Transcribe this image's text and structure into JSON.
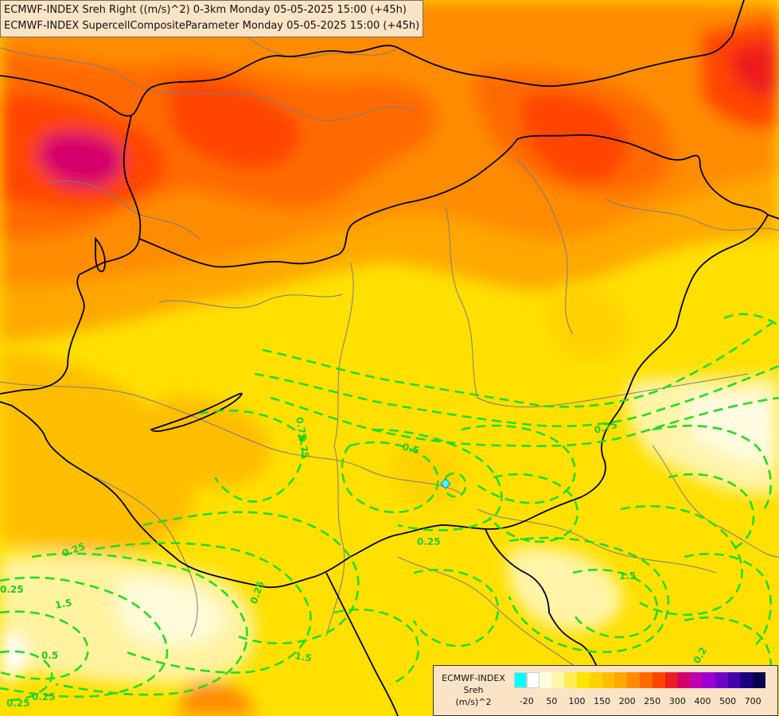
{
  "title": {
    "line1": "ECMWF-INDEX Sreh Right ((m/s)^2) 0-3km Monday 05-05-2025 15:00 (+45h)",
    "line2": "ECMWF-INDEX SupercellCompositeParameter Monday 05-05-2025 15:00 (+45h)"
  },
  "legend": {
    "line1": "ECMWF-INDEX",
    "line2": "Sreh",
    "line3": "(m/s)^2",
    "colors": [
      "#00ffff",
      "#ffffff",
      "#fffde0",
      "#fff7a8",
      "#ffee55",
      "#ffe400",
      "#ffd200",
      "#ffbe00",
      "#ffa800",
      "#ff8c00",
      "#ff6a00",
      "#ff4500",
      "#ee1e1e",
      "#d6006b",
      "#c000b0",
      "#9a00d6",
      "#7200c8",
      "#4400a8",
      "#1a0080",
      "#06004e"
    ],
    "ticks": [
      {
        "label": "-20",
        "slot": 1
      },
      {
        "label": "50",
        "slot": 3
      },
      {
        "label": "100",
        "slot": 5
      },
      {
        "label": "150",
        "slot": 7
      },
      {
        "label": "200",
        "slot": 9
      },
      {
        "label": "250",
        "slot": 11
      },
      {
        "label": "300",
        "slot": 13
      },
      {
        "label": "400",
        "slot": 15
      },
      {
        "label": "500",
        "slot": 17
      },
      {
        "label": "700",
        "slot": 19
      }
    ]
  },
  "contour_labels": [
    "0.75",
    "0.75",
    "0.5",
    "0.75",
    "0.25",
    "0.25",
    "0.25",
    "1.5",
    "0.25",
    "1.5",
    "1.5",
    "0.25",
    "0.5",
    "0.25",
    "0.2"
  ],
  "colors": {
    "contour": "#22dd22",
    "border_national": "#000000",
    "border_regional": "#7a7a8a",
    "legend_bg": "#fbe4c6"
  }
}
